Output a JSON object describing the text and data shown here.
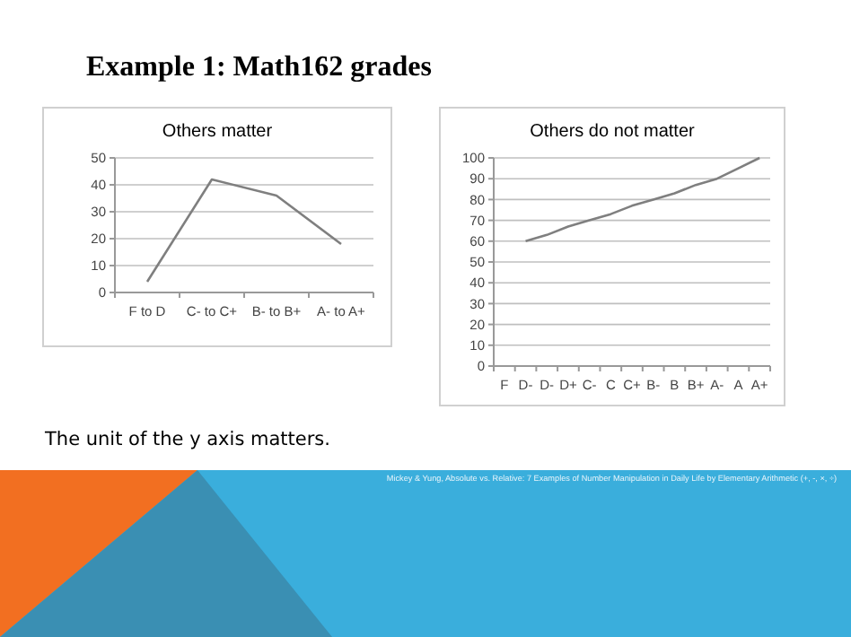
{
  "chart_data": [
    {
      "type": "line",
      "title": "Others matter",
      "categories": [
        "F to D",
        "C- to C+",
        "B- to B+",
        "A- to A+"
      ],
      "series": [
        {
          "color": "#7f7f7f",
          "values": [
            4,
            42,
            36,
            18
          ]
        }
      ],
      "ylim": [
        0,
        50
      ],
      "yticks": [
        0,
        10,
        20,
        30,
        40,
        50
      ],
      "grid": "y",
      "annotations": [
        "Example 1: Math162 grades",
        "The unit of the y axis matters.",
        "Mickey & Yung, Absolute vs. Relative: 7 Examples of Number Manipulation in Daily Life by Elementary Arithmetic (+, -, ×, ÷)"
      ]
    },
    {
      "type": "line",
      "title": "Others do not matter",
      "categories": [
        "F",
        "D-",
        "D-",
        "D+",
        "C-",
        "C",
        "C+",
        "B-",
        "B",
        "B+",
        "A-",
        "A",
        "A+"
      ],
      "series": [
        {
          "color": "#7f7f7f",
          "values": [
            null,
            60,
            63,
            67,
            70,
            73,
            77,
            80,
            83,
            87,
            90,
            95,
            100
          ]
        }
      ],
      "ylim": [
        0,
        100
      ],
      "yticks": [
        0,
        10,
        20,
        30,
        40,
        50,
        60,
        70,
        80,
        90,
        100
      ],
      "grid": "y"
    }
  ]
}
